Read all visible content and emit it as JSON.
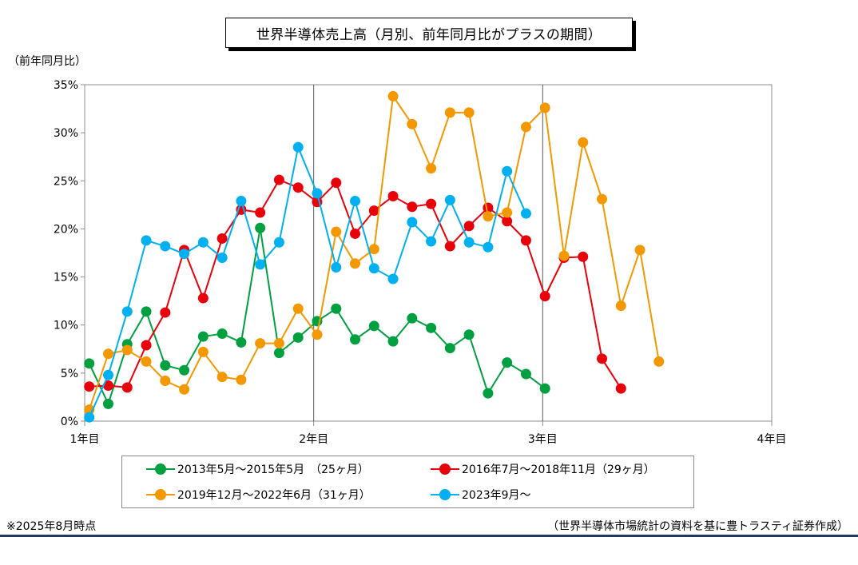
{
  "chart_data": {
    "type": "line",
    "title": "世界半導体売上高（月別、前年同月比がプラスの期間）",
    "ylabel": "（前年同月比）",
    "xlabel": "",
    "x_ticks": [
      "1年目",
      "2年目",
      "3年目",
      "4年目"
    ],
    "y_ticks": [
      "0%",
      "5%",
      "10%",
      "15%",
      "20%",
      "25%",
      "30%",
      "35%"
    ],
    "xlim": [
      1,
      37
    ],
    "ylim": [
      0,
      35
    ],
    "grid": "vertical lines at year boundaries",
    "legend_position": "bottom",
    "series": [
      {
        "name": "2013年5月～2015年5月　（25ヶ月）",
        "color": "#00a040",
        "values": [
          6.0,
          1.8,
          8.0,
          11.4,
          5.8,
          5.3,
          8.8,
          9.1,
          8.2,
          20.1,
          7.1,
          8.7,
          10.4,
          11.7,
          8.5,
          9.9,
          8.3,
          10.7,
          9.7,
          7.6,
          9.0,
          2.9,
          6.1,
          4.9,
          3.4
        ]
      },
      {
        "name": "2016年7月～2018年11月（29ヶ月）",
        "color": "#e8000b",
        "values": [
          3.6,
          3.7,
          3.5,
          7.9,
          11.3,
          17.8,
          12.8,
          19.0,
          22.0,
          21.7,
          25.1,
          24.3,
          22.8,
          24.8,
          19.5,
          21.9,
          23.4,
          22.3,
          22.6,
          18.2,
          20.3,
          22.2,
          20.8,
          18.8,
          13.0,
          17.0,
          17.1,
          6.5,
          3.4
        ]
      },
      {
        "name": "2019年12月～2022年6月（31ヶ月）",
        "color": "#f39800",
        "values": [
          1.2,
          7.0,
          7.4,
          6.2,
          4.2,
          3.3,
          7.2,
          4.6,
          4.3,
          8.1,
          8.1,
          11.7,
          9.0,
          19.7,
          16.4,
          17.9,
          33.8,
          30.9,
          26.3,
          32.1,
          32.1,
          21.3,
          21.7,
          30.6,
          32.6,
          17.2,
          29.0,
          23.1,
          12.0,
          17.8,
          6.2
        ]
      },
      {
        "name": "2023年9月～",
        "color": "#00b0f0",
        "values": [
          0.4,
          4.8,
          11.4,
          18.8,
          18.2,
          17.4,
          18.6,
          17.0,
          22.9,
          16.3,
          18.6,
          28.5,
          23.7,
          16.0,
          22.9,
          15.9,
          14.8,
          20.7,
          18.7,
          23.0,
          18.6,
          18.1,
          26.0,
          21.6
        ]
      }
    ]
  },
  "legend": {
    "s0": "2013年5月～2015年5月　（25ヶ月）",
    "s1": "2016年7月～2018年11月（29ヶ月）",
    "s2": "2019年12月～2022年6月（31ヶ月）",
    "s3": "2023年9月～",
    "c0": "#00a040",
    "c1": "#e8000b",
    "c2": "#f39800",
    "c3": "#00b0f0"
  },
  "footnote": "※2025年8月時点",
  "source": "（世界半導体市場統計の資料を基に豊トラスティ証券作成）"
}
